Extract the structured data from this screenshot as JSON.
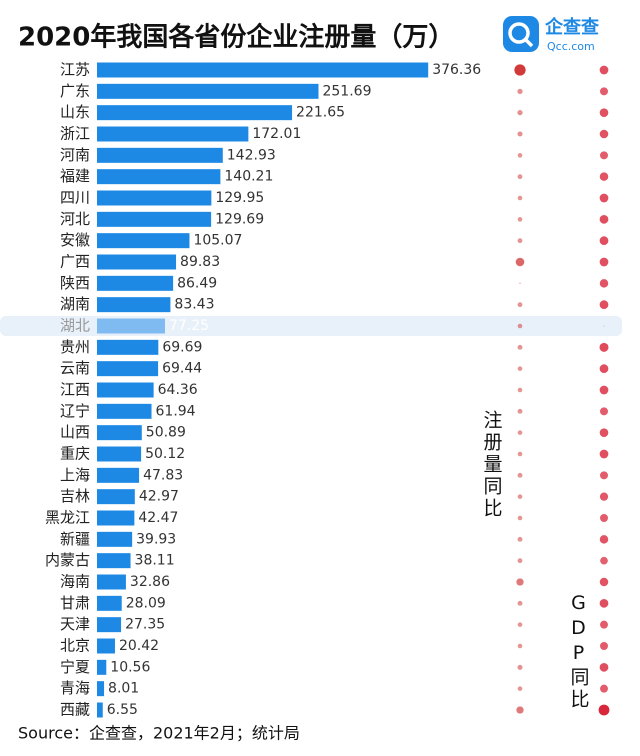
{
  "chart_data": {
    "type": "bar",
    "orientation": "horizontal",
    "title": "2020年我国各省份企业注册量（万）",
    "source": "Source：企查查，2021年2月；统计局",
    "logo": {
      "name": "企查查",
      "site": "Qcc.com"
    },
    "categories": [
      "江苏",
      "广东",
      "山东",
      "浙江",
      "河南",
      "福建",
      "四川",
      "河北",
      "安徽",
      "广西",
      "陕西",
      "湖南",
      "湖北",
      "贵州",
      "云南",
      "江西",
      "辽宁",
      "山西",
      "重庆",
      "上海",
      "吉林",
      "黑龙江",
      "新疆",
      "内蒙古",
      "海南",
      "甘肃",
      "天津",
      "北京",
      "宁夏",
      "青海",
      "西藏"
    ],
    "values": [
      376.36,
      251.69,
      221.65,
      172.01,
      142.93,
      140.21,
      129.95,
      129.69,
      105.07,
      89.83,
      86.49,
      83.43,
      77.25,
      69.69,
      69.44,
      64.36,
      61.94,
      50.89,
      50.12,
      47.83,
      42.97,
      42.47,
      39.93,
      38.11,
      32.86,
      28.09,
      27.35,
      20.42,
      10.56,
      8.01,
      6.55
    ],
    "color": "#1e88e5",
    "highlight_color": "#7fbaf0",
    "highlight_index": 12,
    "dot_series": [
      {
        "name": "注册量同比",
        "color": "#d23a3a",
        "values": [
          6,
          1.3,
          1.3,
          1.2,
          1,
          1.1,
          1,
          1,
          1.1,
          3.5,
          0.1,
          1.1,
          1,
          1.1,
          1,
          1,
          1.1,
          1,
          1,
          1.1,
          1,
          1,
          1.1,
          1.1,
          2.5,
          1.1,
          1,
          1,
          1.2,
          1,
          2.5
        ]
      },
      {
        "name": "GDP同比",
        "color": "#d8263a",
        "values": [
          3.6,
          3,
          3.5,
          3.5,
          3,
          3.4,
          3.6,
          3.6,
          3.6,
          3.6,
          3.4,
          3.6,
          0.05,
          3.8,
          3.6,
          3.6,
          3,
          3.5,
          3.6,
          3,
          3.2,
          3,
          3.4,
          2.8,
          3.4,
          3.6,
          3,
          3,
          3.6,
          3,
          5.5
        ]
      }
    ]
  }
}
